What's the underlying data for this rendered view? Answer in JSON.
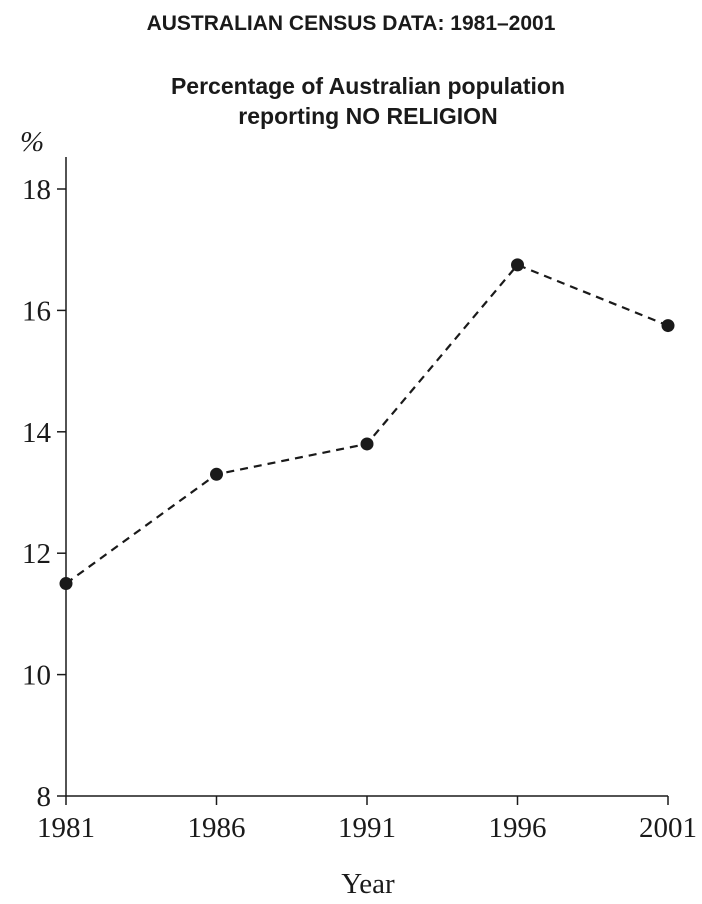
{
  "header": {
    "title": "AUSTRALIAN CENSUS DATA: 1981–2001",
    "subtitle_line1": "Percentage of Australian population",
    "subtitle_line2": "reporting NO RELIGION"
  },
  "chart_data": {
    "type": "line",
    "title": "AUSTRALIAN CENSUS DATA: 1981–2001",
    "subtitle": "Percentage of Australian population reporting NO RELIGION",
    "xlabel": "Year",
    "ylabel": "%",
    "x": [
      1981,
      1986,
      1991,
      1996,
      2001
    ],
    "xtick_labels": [
      "1981",
      "1986",
      "1991",
      "1996",
      "2001"
    ],
    "ytick_labels": [
      "8",
      "10",
      "12",
      "14",
      "16",
      "18"
    ],
    "yticks": [
      8,
      10,
      12,
      14,
      16,
      18
    ],
    "xlim": [
      1981,
      2001
    ],
    "ylim": [
      8,
      18.5
    ],
    "series": [
      {
        "values": [
          11.5,
          13.3,
          13.8,
          16.75,
          15.75
        ]
      }
    ],
    "line_style": "dashed",
    "marker": "filled-circle",
    "grid": false,
    "legend": "none",
    "color": "#1a1a1a"
  }
}
